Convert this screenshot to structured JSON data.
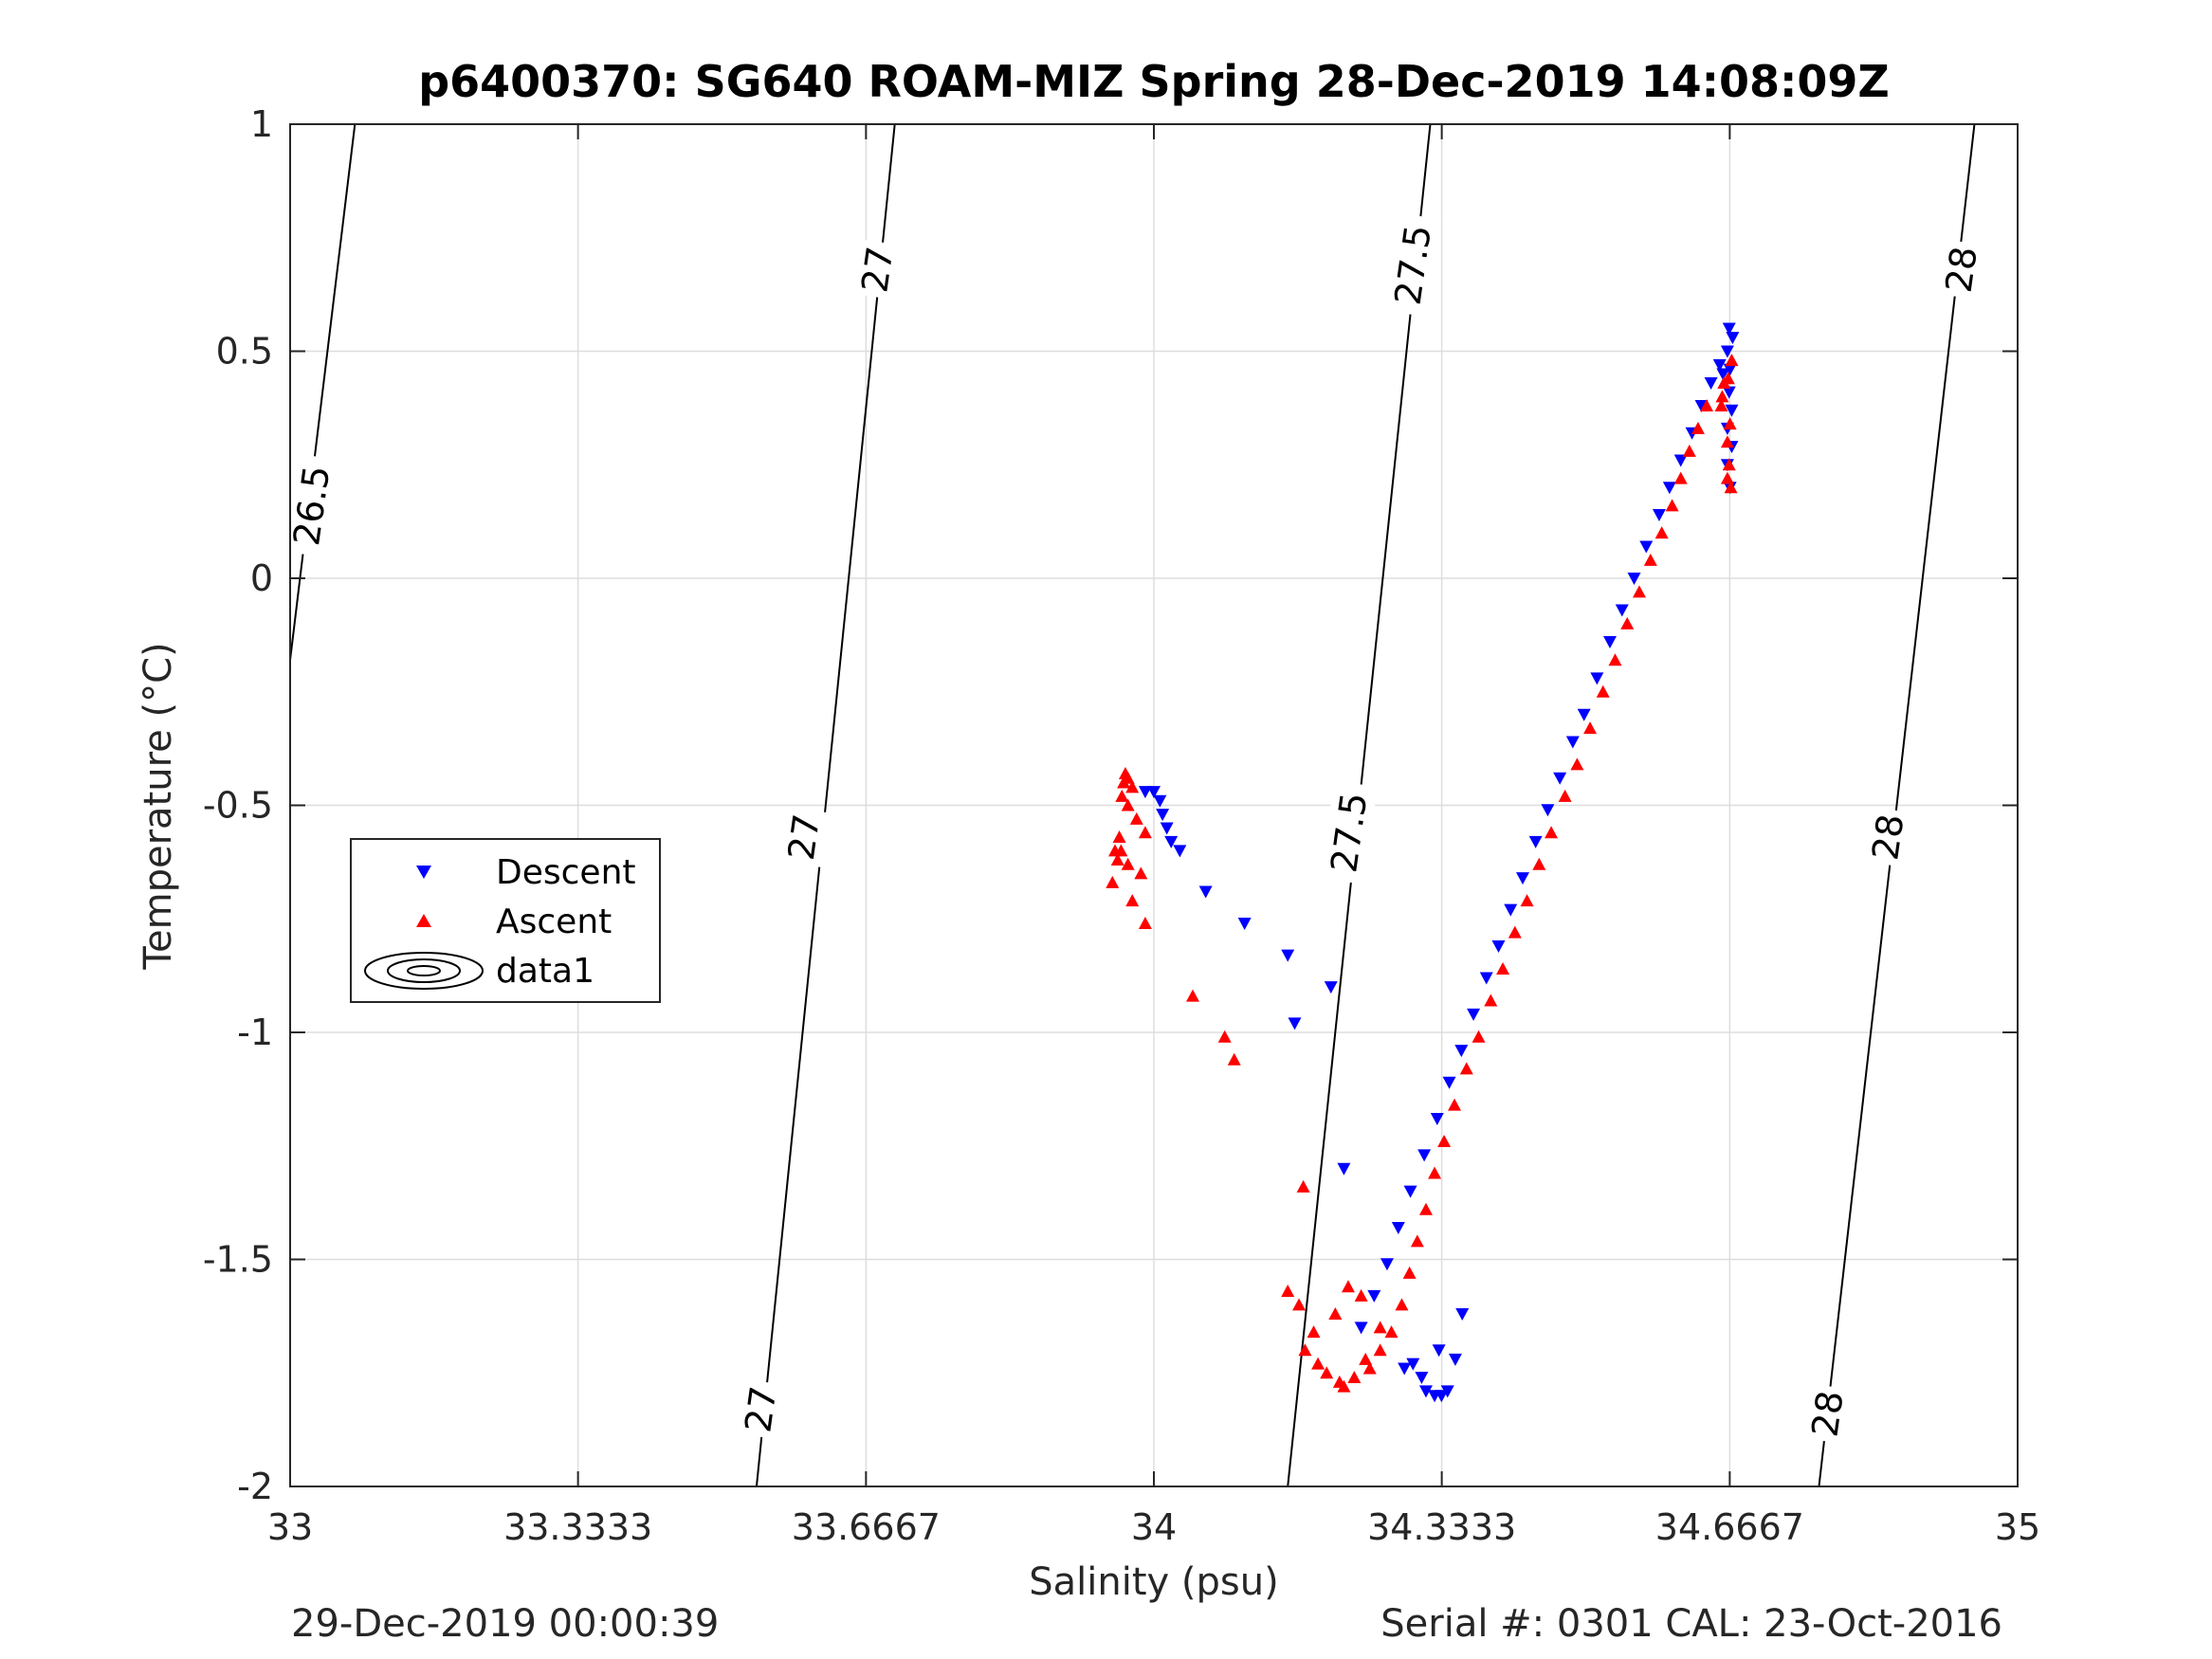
{
  "chart_data": {
    "type": "scatter",
    "title": "p6400370: SG640 ROAM-MIZ Spring 28-Dec-2019 14:08:09Z",
    "xlabel": "Salinity (psu)",
    "ylabel": "Temperature (°C)",
    "xlim": [
      33,
      35
    ],
    "ylim": [
      -2,
      1
    ],
    "xticks": [
      33,
      33.3333,
      33.6667,
      34,
      34.3333,
      34.6667,
      35
    ],
    "xtick_labels": [
      "33",
      "33.3333",
      "33.6667",
      "34",
      "34.3333",
      "34.6667",
      "35"
    ],
    "yticks": [
      -2,
      -1.5,
      -1,
      -0.5,
      0,
      0.5,
      1
    ],
    "ytick_labels": [
      "-2",
      "-1.5",
      "-1",
      "-0.5",
      "0",
      "0.5",
      "1"
    ],
    "grid": true,
    "legend_position": "middle-left",
    "legend": [
      "Descent",
      "Ascent",
      "data1"
    ],
    "series": [
      {
        "name": "Descent",
        "color": "#0000ff",
        "marker": "triangle-down",
        "points": [
          [
            34.666,
            0.55
          ],
          [
            34.67,
            0.53
          ],
          [
            34.664,
            0.5
          ],
          [
            34.667,
            0.46
          ],
          [
            34.659,
            0.45
          ],
          [
            34.666,
            0.41
          ],
          [
            34.669,
            0.37
          ],
          [
            34.664,
            0.33
          ],
          [
            34.669,
            0.29
          ],
          [
            34.664,
            0.25
          ],
          [
            34.667,
            0.2
          ],
          [
            34.655,
            0.47
          ],
          [
            34.645,
            0.43
          ],
          [
            34.634,
            0.38
          ],
          [
            34.623,
            0.32
          ],
          [
            34.61,
            0.26
          ],
          [
            34.597,
            0.2
          ],
          [
            34.585,
            0.14
          ],
          [
            34.57,
            0.07
          ],
          [
            34.556,
            0.0
          ],
          [
            34.542,
            -0.07
          ],
          [
            34.528,
            -0.14
          ],
          [
            34.513,
            -0.22
          ],
          [
            34.498,
            -0.3
          ],
          [
            34.485,
            -0.36
          ],
          [
            34.47,
            -0.44
          ],
          [
            34.456,
            -0.51
          ],
          [
            34.442,
            -0.58
          ],
          [
            34.427,
            -0.66
          ],
          [
            34.413,
            -0.73
          ],
          [
            34.399,
            -0.81
          ],
          [
            34.385,
            -0.88
          ],
          [
            34.37,
            -0.96
          ],
          [
            34.356,
            -1.04
          ],
          [
            34.342,
            -1.11
          ],
          [
            34.328,
            -1.19
          ],
          [
            34.313,
            -1.27
          ],
          [
            34.297,
            -1.35
          ],
          [
            34.283,
            -1.43
          ],
          [
            34.27,
            -1.51
          ],
          [
            34.255,
            -1.58
          ],
          [
            34.24,
            -1.65
          ],
          [
            34.357,
            -1.62
          ],
          [
            34.349,
            -1.72
          ],
          [
            34.34,
            -1.79
          ],
          [
            34.333,
            -1.8
          ],
          [
            34.325,
            -1.8
          ],
          [
            34.315,
            -1.79
          ],
          [
            34.3,
            -1.73
          ],
          [
            34.29,
            -1.74
          ],
          [
            34.31,
            -1.76
          ],
          [
            34.33,
            -1.7
          ],
          [
            33.99,
            -0.47
          ],
          [
            34.0,
            -0.47
          ],
          [
            34.007,
            -0.49
          ],
          [
            34.01,
            -0.52
          ],
          [
            34.015,
            -0.55
          ],
          [
            34.02,
            -0.58
          ],
          [
            34.03,
            -0.6
          ],
          [
            34.06,
            -0.69
          ],
          [
            34.105,
            -0.76
          ],
          [
            34.155,
            -0.83
          ],
          [
            34.163,
            -0.98
          ],
          [
            34.205,
            -0.9
          ],
          [
            34.22,
            -1.3
          ]
        ]
      },
      {
        "name": "Ascent",
        "color": "#ff0000",
        "marker": "triangle-up",
        "points": [
          [
            34.669,
            0.48
          ],
          [
            34.665,
            0.44
          ],
          [
            34.66,
            0.43
          ],
          [
            34.657,
            0.38
          ],
          [
            34.667,
            0.34
          ],
          [
            34.664,
            0.3
          ],
          [
            34.666,
            0.25
          ],
          [
            34.668,
            0.2
          ],
          [
            34.664,
            0.22
          ],
          [
            34.658,
            0.4
          ],
          [
            34.64,
            0.38
          ],
          [
            34.63,
            0.33
          ],
          [
            34.62,
            0.28
          ],
          [
            34.61,
            0.22
          ],
          [
            34.6,
            0.16
          ],
          [
            34.588,
            0.1
          ],
          [
            34.575,
            0.04
          ],
          [
            34.562,
            -0.03
          ],
          [
            34.548,
            -0.1
          ],
          [
            34.534,
            -0.18
          ],
          [
            34.52,
            -0.25
          ],
          [
            34.505,
            -0.33
          ],
          [
            34.49,
            -0.41
          ],
          [
            34.476,
            -0.48
          ],
          [
            34.46,
            -0.56
          ],
          [
            34.446,
            -0.63
          ],
          [
            34.432,
            -0.71
          ],
          [
            34.418,
            -0.78
          ],
          [
            34.404,
            -0.86
          ],
          [
            34.39,
            -0.93
          ],
          [
            34.376,
            -1.01
          ],
          [
            34.362,
            -1.08
          ],
          [
            34.348,
            -1.16
          ],
          [
            34.336,
            -1.24
          ],
          [
            34.325,
            -1.31
          ],
          [
            34.315,
            -1.39
          ],
          [
            34.305,
            -1.46
          ],
          [
            34.296,
            -1.53
          ],
          [
            34.287,
            -1.6
          ],
          [
            34.275,
            -1.66
          ],
          [
            34.262,
            -1.7
          ],
          [
            34.25,
            -1.74
          ],
          [
            34.232,
            -1.76
          ],
          [
            34.215,
            -1.77
          ],
          [
            34.2,
            -1.75
          ],
          [
            34.19,
            -1.73
          ],
          [
            34.22,
            -1.78
          ],
          [
            34.245,
            -1.72
          ],
          [
            34.262,
            -1.65
          ],
          [
            34.24,
            -1.58
          ],
          [
            34.225,
            -1.56
          ],
          [
            34.21,
            -1.62
          ],
          [
            34.185,
            -1.66
          ],
          [
            34.175,
            -1.7
          ],
          [
            34.168,
            -1.6
          ],
          [
            34.155,
            -1.57
          ],
          [
            33.963,
            -0.48
          ],
          [
            33.965,
            -0.45
          ],
          [
            33.967,
            -0.43
          ],
          [
            33.97,
            -0.44
          ],
          [
            33.975,
            -0.46
          ],
          [
            33.97,
            -0.5
          ],
          [
            33.98,
            -0.53
          ],
          [
            33.99,
            -0.56
          ],
          [
            33.96,
            -0.57
          ],
          [
            33.962,
            -0.6
          ],
          [
            33.955,
            -0.6
          ],
          [
            33.958,
            -0.62
          ],
          [
            33.97,
            -0.63
          ],
          [
            33.985,
            -0.65
          ],
          [
            33.952,
            -0.67
          ],
          [
            33.975,
            -0.71
          ],
          [
            33.99,
            -0.76
          ],
          [
            34.045,
            -0.92
          ],
          [
            34.082,
            -1.01
          ],
          [
            34.093,
            -1.06
          ],
          [
            34.173,
            -1.34
          ]
        ]
      }
    ],
    "isopycnals": [
      {
        "label": "26.5",
        "points": [
          [
            33.0,
            -0.18
          ],
          [
            33.075,
            1.0
          ]
        ]
      },
      {
        "label": "27",
        "points": [
          [
            33.54,
            -2.0
          ],
          [
            33.7,
            1.0
          ]
        ]
      },
      {
        "label": "27.5",
        "points": [
          [
            34.155,
            -2.0
          ],
          [
            34.32,
            1.0
          ]
        ]
      },
      {
        "label": "28",
        "points": [
          [
            34.77,
            -2.0
          ],
          [
            34.95,
            1.0
          ]
        ]
      }
    ],
    "contour_labels": [
      {
        "text": "26.5",
        "x": 33.025,
        "y": 0.16
      },
      {
        "text": "27",
        "x": 33.68,
        "y": 0.68
      },
      {
        "text": "27",
        "x": 33.595,
        "y": -0.57
      },
      {
        "text": "27",
        "x": 33.545,
        "y": -1.83
      },
      {
        "text": "27.5",
        "x": 34.3,
        "y": 0.69
      },
      {
        "text": "27.5",
        "x": 34.226,
        "y": -0.56
      },
      {
        "text": "28",
        "x": 34.935,
        "y": 0.68
      },
      {
        "text": "28",
        "x": 34.85,
        "y": -0.57
      },
      {
        "text": "28",
        "x": 34.78,
        "y": -1.84
      }
    ]
  },
  "footer": {
    "left": "29-Dec-2019 00:00:39",
    "right": "Serial #: 0301  CAL: 23-Oct-2016"
  }
}
